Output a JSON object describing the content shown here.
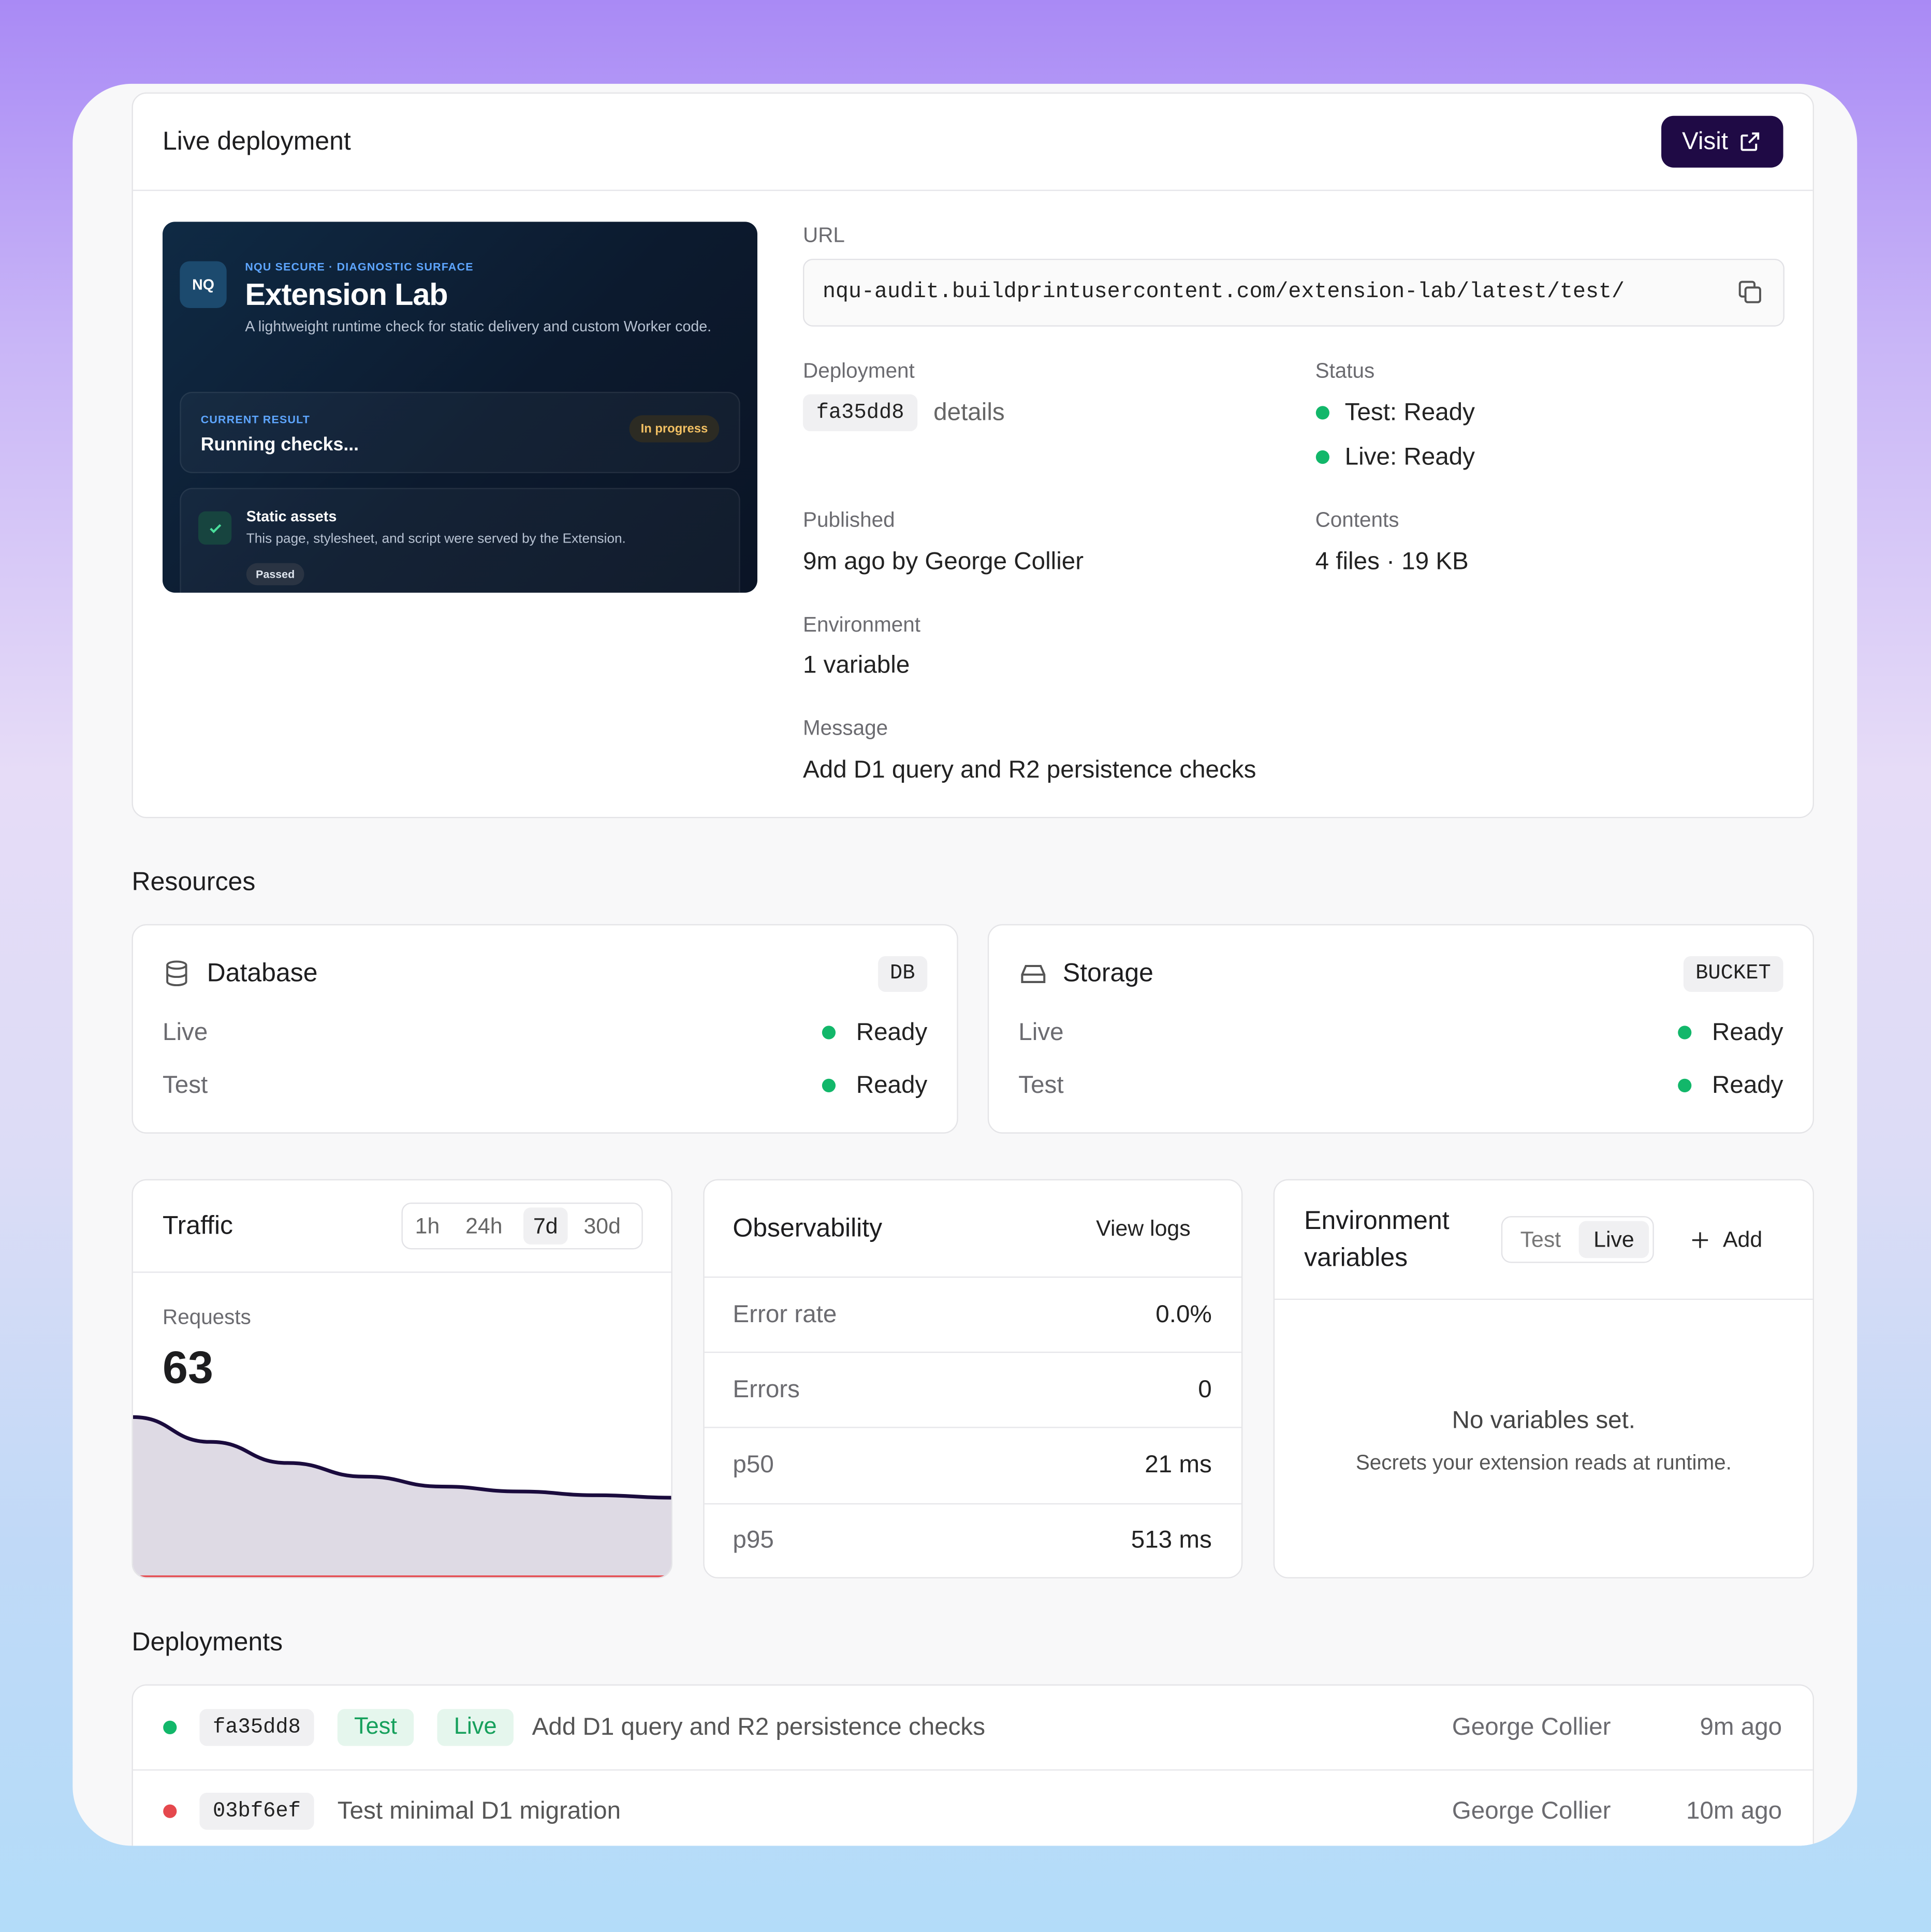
{
  "header": {
    "title": "Live deployment",
    "visit_button": "Visit"
  },
  "preview": {
    "logo": "NQ",
    "eyebrow": "NQU SECURE · DIAGNOSTIC SURFACE",
    "title": "Extension Lab",
    "description": "A lightweight runtime check for static delivery and custom Worker code.",
    "result_label": "CURRENT RESULT",
    "result_text": "Running checks...",
    "result_badge": "In progress",
    "check_title": "Static assets",
    "check_description": "This page, stylesheet, and script were served by the Extension.",
    "check_badge": "Passed"
  },
  "details": {
    "url_label": "URL",
    "url": "nqu-audit.buildprintusercontent.com/extension-lab/latest/test/",
    "deployment_label": "Deployment",
    "deployment_id": "fa35dd8",
    "deployment_link": "details",
    "status_label": "Status",
    "status": [
      {
        "text": "Test: Ready",
        "color": "#12b76a"
      },
      {
        "text": "Live: Ready",
        "color": "#12b76a"
      }
    ],
    "published_label": "Published",
    "published": "9m ago by George Collier",
    "contents_label": "Contents",
    "contents": "4 files · 19 KB",
    "environment_label": "Environment",
    "environment": "1 variable",
    "message_label": "Message",
    "message": "Add D1 query and R2 persistence checks"
  },
  "resources": {
    "title": "Resources",
    "items": [
      {
        "name": "Database",
        "badge": "DB",
        "rows": [
          {
            "env": "Live",
            "status": "Ready",
            "color": "#12b76a"
          },
          {
            "env": "Test",
            "status": "Ready",
            "color": "#12b76a"
          }
        ]
      },
      {
        "name": "Storage",
        "badge": "BUCKET",
        "rows": [
          {
            "env": "Live",
            "status": "Ready",
            "color": "#12b76a"
          },
          {
            "env": "Test",
            "status": "Ready",
            "color": "#12b76a"
          }
        ]
      }
    ]
  },
  "traffic": {
    "title": "Traffic",
    "ranges": [
      "1h",
      "24h",
      "7d",
      "30d"
    ],
    "selected_range": "7d",
    "metric_label": "Requests",
    "metric_value": "63",
    "sparkline": {
      "type": "area",
      "values": [
        130,
        110,
        93,
        82,
        74,
        70,
        67,
        65
      ],
      "error_values": [
        0,
        0,
        0,
        0,
        0,
        0,
        0,
        0
      ],
      "ylim": [
        0,
        140
      ],
      "color": "#1a0b3d",
      "fill": "#dedae4",
      "error_color": "#e5484d"
    }
  },
  "observability": {
    "title": "Observability",
    "view_logs": "View logs",
    "rows": [
      [
        "Error rate",
        "0.0%"
      ],
      [
        "Errors",
        "0"
      ],
      [
        "p50",
        "21 ms"
      ],
      [
        "p95",
        "513 ms"
      ]
    ]
  },
  "environment_variables": {
    "title_line1": "Environment",
    "title_line2": "variables",
    "toggle": [
      "Test",
      "Live"
    ],
    "selected": "Live",
    "add": "Add",
    "empty_title": "No variables set.",
    "empty_text": "Secrets your extension reads at runtime."
  },
  "deployments": {
    "title": "Deployments",
    "rows": [
      {
        "color": "#12b76a",
        "id": "fa35dd8",
        "tags": [
          "Test",
          "Live"
        ],
        "message": "Add D1 query and R2 persistence checks",
        "author": "George Collier",
        "time": "9m ago"
      },
      {
        "color": "#e5484d",
        "id": "03bf6ef",
        "tags": [],
        "message": "Test minimal D1 migration",
        "author": "George Collier",
        "time": "10m ago"
      }
    ]
  }
}
